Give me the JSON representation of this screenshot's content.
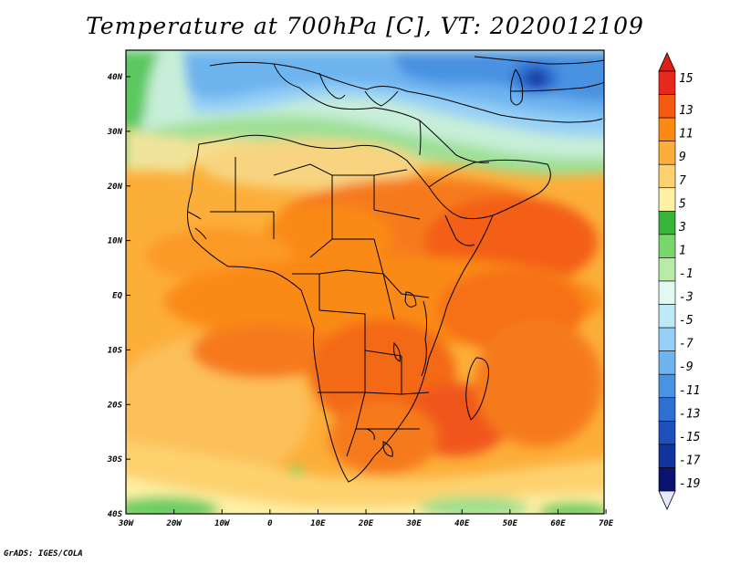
{
  "title": "Temperature at 700hPa [C], VT: 2020012109",
  "credit": "GrADS: IGES/COLA",
  "map": {
    "lon_labels": [
      "30W",
      "20W",
      "10W",
      "0",
      "10E",
      "20E",
      "30E",
      "40E",
      "50E",
      "60E",
      "70E"
    ],
    "lat_labels": [
      "40N",
      "30N",
      "20N",
      "10N",
      "EQ",
      "10S",
      "20S",
      "30S",
      "40S"
    ]
  },
  "colorbar": {
    "levels": [
      "15",
      "13",
      "11",
      "9",
      "7",
      "5",
      "3",
      "1",
      "-1",
      "-3",
      "-5",
      "-7",
      "-9",
      "-11",
      "-13",
      "-15",
      "-17",
      "-19"
    ],
    "colors": [
      "#e8281c",
      "#f55a12",
      "#fa8a14",
      "#fcae3a",
      "#fdd26e",
      "#fef0a4",
      "#36b43c",
      "#78d66a",
      "#b6eca6",
      "#e2f8f0",
      "#bfe8f8",
      "#96d0f6",
      "#6eb4ef",
      "#4a92e2",
      "#2f6fd2",
      "#1f4fba",
      "#12339c",
      "#0a1470"
    ],
    "top_color": "#dd1f1a",
    "bottom_color": "#e6e8ff"
  }
}
